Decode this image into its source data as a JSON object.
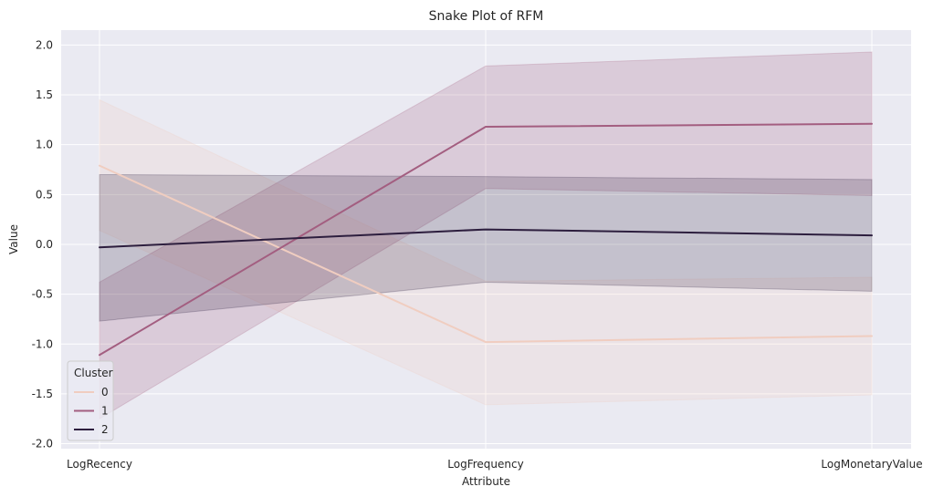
{
  "chart_data": {
    "type": "line",
    "title": "Snake Plot of RFM",
    "xlabel": "Attribute",
    "ylabel": "Value",
    "categories": [
      "LogRecency",
      "LogFrequency",
      "LogMonetaryValue"
    ],
    "ylim": [
      -2.05,
      2.15
    ],
    "yticks": [
      -2.0,
      -1.5,
      -1.0,
      -0.5,
      0.0,
      0.5,
      1.0,
      1.5,
      2.0
    ],
    "ytick_labels": [
      "-2.0",
      "-1.5",
      "-1.0",
      "-0.5",
      "0.0",
      "0.5",
      "1.0",
      "1.5",
      "2.0"
    ],
    "grid": true,
    "background": "#eaeaf2",
    "legend": {
      "title": "Cluster",
      "placement": "lower-left"
    },
    "series": [
      {
        "name": "0",
        "color": "#f0cdc0",
        "values": [
          0.79,
          -0.98,
          -0.92
        ],
        "ci_low": [
          0.14,
          -1.61,
          -1.51
        ],
        "ci_high": [
          1.45,
          -0.37,
          -0.33
        ]
      },
      {
        "name": "1",
        "color": "#a35e80",
        "values": [
          -1.11,
          1.18,
          1.21
        ],
        "ci_low": [
          -1.75,
          0.56,
          0.49
        ],
        "ci_high": [
          -0.38,
          1.79,
          1.93
        ]
      },
      {
        "name": "2",
        "color": "#2d1e3e",
        "values": [
          -0.03,
          0.15,
          0.09
        ],
        "ci_low": [
          -0.77,
          -0.38,
          -0.47
        ],
        "ci_high": [
          0.7,
          0.68,
          0.65
        ]
      }
    ]
  }
}
